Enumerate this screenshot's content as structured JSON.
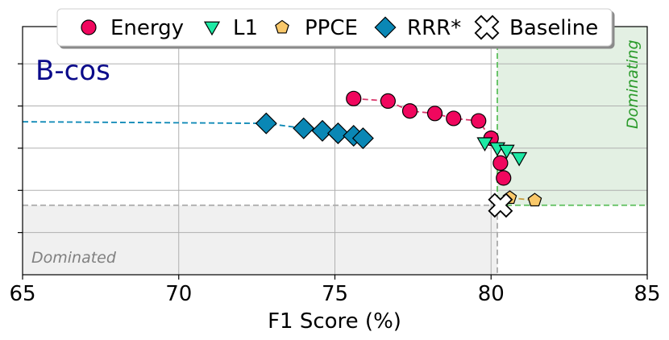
{
  "chart_data": {
    "type": "scatter",
    "title": "",
    "panel_label": "B-cos",
    "xlabel": "F1 Score (%)",
    "ylabel": "",
    "xlim": [
      65,
      85
    ],
    "ylim": [
      0,
      1
    ],
    "xticks": [
      65,
      70,
      75,
      80,
      85
    ],
    "xtick_labels": [
      "65",
      "70",
      "75",
      "80",
      "85"
    ],
    "yticks": [
      0.17,
      0.34,
      0.51,
      0.68,
      0.85
    ],
    "grid": true,
    "legend_position": "top-center",
    "regions": {
      "dominated": {
        "label": "Dominated",
        "x_max": 80.2,
        "y_max": 0.28,
        "color": "#f0f0f0"
      },
      "dominating": {
        "label": "Dominating",
        "x_min": 80.2,
        "y_min": 0.28,
        "color": "#e3f0e3",
        "label_color": "#2a9a2a"
      }
    },
    "baseline_lines": {
      "x": 80.2,
      "y": 0.28
    },
    "series": [
      {
        "name": "Energy",
        "marker": "circle",
        "color": "#f0075e",
        "line_color": "#d9356a",
        "points": [
          [
            75.6,
            0.71
          ],
          [
            76.7,
            0.7
          ],
          [
            77.4,
            0.66
          ],
          [
            78.2,
            0.65
          ],
          [
            78.8,
            0.63
          ],
          [
            79.6,
            0.62
          ],
          [
            80.0,
            0.55
          ],
          [
            80.3,
            0.45
          ],
          [
            80.4,
            0.39
          ]
        ]
      },
      {
        "name": "L1",
        "marker": "triangle-down",
        "color": "#1de9a4",
        "line_color": "#1ab58a",
        "points": [
          [
            79.8,
            0.53
          ],
          [
            80.2,
            0.51
          ],
          [
            80.5,
            0.5
          ],
          [
            80.9,
            0.47
          ]
        ]
      },
      {
        "name": "PPCE",
        "marker": "pentagon",
        "color": "#f9c86a",
        "line_color": "#c9a040",
        "points": [
          [
            80.6,
            0.31
          ],
          [
            81.4,
            0.3
          ]
        ]
      },
      {
        "name": "RRR*",
        "marker": "diamond",
        "color": "#0a87b5",
        "line_color": "#0a87b5",
        "extends_left": true,
        "points": [
          [
            72.8,
            0.61
          ],
          [
            74.0,
            0.59
          ],
          [
            74.6,
            0.58
          ],
          [
            75.1,
            0.57
          ],
          [
            75.6,
            0.56
          ],
          [
            75.9,
            0.55
          ]
        ]
      },
      {
        "name": "Baseline",
        "marker": "cross",
        "color": "#ffffff",
        "points": [
          [
            80.3,
            0.28
          ]
        ]
      }
    ]
  }
}
